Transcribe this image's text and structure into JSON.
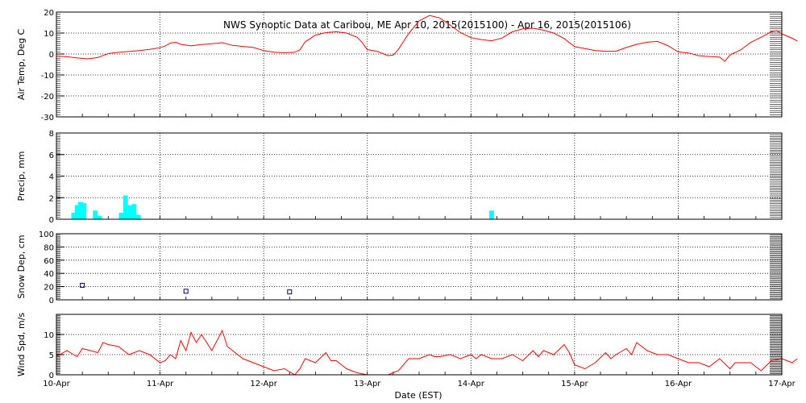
{
  "chart_data": {
    "type": "multi-panel time series",
    "title": "NWS Synoptic Data at Caribou, ME   Apr 10, 2015(2015100) - Apr 16, 2015(2015106)",
    "xlabel": "Date (EST)",
    "x_ticks": [
      "10-Apr",
      "11-Apr",
      "12-Apr",
      "13-Apr",
      "14-Apr",
      "15-Apr",
      "16-Apr",
      "17-Apr"
    ],
    "x_range_days": [
      0,
      7
    ],
    "panels": [
      {
        "id": "air-temp",
        "type": "line",
        "ylabel": "Air Temp, Deg C",
        "ylim": [
          -30,
          20
        ],
        "yticks": [
          -30,
          -20,
          -10,
          0,
          10,
          20
        ],
        "color": "#ff0000",
        "points": [
          [
            0,
            -1
          ],
          [
            0.1,
            -1.3
          ],
          [
            0.2,
            -1.9
          ],
          [
            0.3,
            -2.3
          ],
          [
            0.4,
            -1.7
          ],
          [
            0.5,
            0.2
          ],
          [
            0.6,
            0.8
          ],
          [
            0.7,
            1.2
          ],
          [
            0.8,
            1.6
          ],
          [
            0.9,
            2.2
          ],
          [
            1.0,
            3.0
          ],
          [
            1.05,
            3.8
          ],
          [
            1.1,
            5.2
          ],
          [
            1.15,
            5.6
          ],
          [
            1.2,
            4.6
          ],
          [
            1.3,
            3.9
          ],
          [
            1.4,
            4.5
          ],
          [
            1.5,
            4.9
          ],
          [
            1.6,
            5.4
          ],
          [
            1.7,
            4.1
          ],
          [
            1.8,
            3.6
          ],
          [
            1.9,
            3.1
          ],
          [
            2.0,
            1.6
          ],
          [
            2.1,
            0.9
          ],
          [
            2.2,
            0.6
          ],
          [
            2.3,
            0.8
          ],
          [
            2.35,
            2.0
          ],
          [
            2.4,
            5.8
          ],
          [
            2.5,
            9.0
          ],
          [
            2.6,
            10.2
          ],
          [
            2.7,
            10.6
          ],
          [
            2.8,
            10.0
          ],
          [
            2.9,
            8.0
          ],
          [
            2.95,
            5.5
          ],
          [
            3.0,
            2.1
          ],
          [
            3.1,
            1.2
          ],
          [
            3.2,
            -0.8
          ],
          [
            3.25,
            -0.5
          ],
          [
            3.3,
            2.2
          ],
          [
            3.4,
            9.8
          ],
          [
            3.5,
            15.8
          ],
          [
            3.6,
            18.4
          ],
          [
            3.7,
            17.2
          ],
          [
            3.8,
            13.8
          ],
          [
            3.9,
            10.2
          ],
          [
            4.0,
            7.8
          ],
          [
            4.1,
            6.9
          ],
          [
            4.2,
            6.3
          ],
          [
            4.3,
            7.6
          ],
          [
            4.4,
            10.6
          ],
          [
            4.5,
            12.0
          ],
          [
            4.6,
            12.3
          ],
          [
            4.7,
            11.4
          ],
          [
            4.8,
            10.0
          ],
          [
            4.9,
            7.4
          ],
          [
            5.0,
            3.5
          ],
          [
            5.1,
            2.6
          ],
          [
            5.2,
            1.6
          ],
          [
            5.3,
            1.3
          ],
          [
            5.4,
            1.3
          ],
          [
            5.5,
            3.1
          ],
          [
            5.6,
            4.6
          ],
          [
            5.7,
            5.6
          ],
          [
            5.8,
            6.0
          ],
          [
            5.9,
            4.0
          ],
          [
            6.0,
            1.0
          ],
          [
            6.1,
            0.5
          ],
          [
            6.2,
            -0.8
          ],
          [
            6.3,
            -1.2
          ],
          [
            6.4,
            -1.5
          ],
          [
            6.45,
            -3.5
          ],
          [
            6.5,
            -0.5
          ],
          [
            6.6,
            1.9
          ],
          [
            6.7,
            5.5
          ],
          [
            6.8,
            8.0
          ],
          [
            6.9,
            10.6
          ],
          [
            6.95,
            11.1
          ],
          [
            7.0,
            9.6
          ],
          [
            7.1,
            7.5
          ],
          [
            7.15,
            6.2
          ]
        ]
      },
      {
        "id": "precip",
        "type": "bar",
        "ylabel": "Precip, mm",
        "ylim": [
          0,
          8
        ],
        "yticks": [
          0,
          2,
          4,
          6,
          8
        ],
        "color": "#00ffff",
        "bars": [
          [
            0.167,
            0.6
          ],
          [
            0.2,
            1.3
          ],
          [
            0.233,
            1.6
          ],
          [
            0.267,
            1.5
          ],
          [
            0.375,
            0.8
          ],
          [
            0.417,
            0.3
          ],
          [
            0.625,
            0.6
          ],
          [
            0.667,
            2.2
          ],
          [
            0.708,
            1.3
          ],
          [
            0.75,
            1.4
          ],
          [
            0.792,
            0.4
          ],
          [
            4.2,
            0.8
          ]
        ]
      },
      {
        "id": "snow-depth",
        "type": "scatter",
        "ylabel": "Snow Dep, cm",
        "ylim": [
          0,
          100
        ],
        "yticks": [
          0,
          20,
          40,
          60,
          80,
          100
        ],
        "color": "#000080",
        "points": [
          [
            0.25,
            22
          ],
          [
            1.25,
            13
          ],
          [
            2.25,
            12
          ]
        ]
      },
      {
        "id": "wind-speed",
        "type": "line",
        "ylabel": "Wind Spd, m/s",
        "ylim": [
          0,
          15
        ],
        "yticks": [
          0,
          5,
          10
        ],
        "color": "#ff0000",
        "points": [
          [
            0,
            4.5
          ],
          [
            0.1,
            6
          ],
          [
            0.2,
            4.5
          ],
          [
            0.25,
            6.5
          ],
          [
            0.3,
            6.2
          ],
          [
            0.4,
            5.5
          ],
          [
            0.45,
            8
          ],
          [
            0.5,
            7.5
          ],
          [
            0.6,
            7
          ],
          [
            0.7,
            5
          ],
          [
            0.8,
            6
          ],
          [
            0.9,
            5
          ],
          [
            1.0,
            3
          ],
          [
            1.05,
            3.5
          ],
          [
            1.1,
            5
          ],
          [
            1.15,
            4
          ],
          [
            1.2,
            8.5
          ],
          [
            1.25,
            6
          ],
          [
            1.3,
            10.5
          ],
          [
            1.35,
            8
          ],
          [
            1.4,
            10
          ],
          [
            1.5,
            6
          ],
          [
            1.6,
            11
          ],
          [
            1.65,
            7
          ],
          [
            1.8,
            4
          ],
          [
            1.9,
            3
          ],
          [
            2.0,
            2
          ],
          [
            2.1,
            1
          ],
          [
            2.2,
            1.5
          ],
          [
            2.3,
            0
          ],
          [
            2.35,
            1.5
          ],
          [
            2.4,
            4
          ],
          [
            2.5,
            3
          ],
          [
            2.6,
            5.5
          ],
          [
            2.65,
            3.5
          ],
          [
            2.7,
            3.5
          ],
          [
            2.8,
            1.5
          ],
          [
            2.9,
            0.5
          ],
          [
            3.0,
            0
          ],
          [
            3.2,
            0
          ],
          [
            3.3,
            1
          ],
          [
            3.4,
            4
          ],
          [
            3.5,
            4
          ],
          [
            3.6,
            5
          ],
          [
            3.65,
            4.5
          ],
          [
            3.7,
            4.5
          ],
          [
            3.8,
            5
          ],
          [
            3.9,
            4
          ],
          [
            4.0,
            5
          ],
          [
            4.05,
            4
          ],
          [
            4.1,
            5
          ],
          [
            4.2,
            4
          ],
          [
            4.3,
            4
          ],
          [
            4.4,
            5
          ],
          [
            4.5,
            3.5
          ],
          [
            4.6,
            6
          ],
          [
            4.65,
            4.5
          ],
          [
            4.7,
            6
          ],
          [
            4.8,
            5
          ],
          [
            4.9,
            7.5
          ],
          [
            4.95,
            5.5
          ],
          [
            5.0,
            2.5
          ],
          [
            5.1,
            1.5
          ],
          [
            5.2,
            3
          ],
          [
            5.3,
            5.5
          ],
          [
            5.35,
            4
          ],
          [
            5.4,
            5
          ],
          [
            5.5,
            6.5
          ],
          [
            5.55,
            5
          ],
          [
            5.6,
            8
          ],
          [
            5.7,
            6
          ],
          [
            5.8,
            5
          ],
          [
            5.9,
            5
          ],
          [
            6.0,
            4
          ],
          [
            6.1,
            3
          ],
          [
            6.2,
            3
          ],
          [
            6.3,
            2
          ],
          [
            6.35,
            3
          ],
          [
            6.4,
            4
          ],
          [
            6.5,
            1.5
          ],
          [
            6.55,
            3
          ],
          [
            6.6,
            3
          ],
          [
            6.7,
            3
          ],
          [
            6.8,
            1
          ],
          [
            6.9,
            3.5
          ],
          [
            7.0,
            4
          ],
          [
            7.1,
            3
          ],
          [
            7.15,
            4
          ]
        ]
      }
    ]
  }
}
